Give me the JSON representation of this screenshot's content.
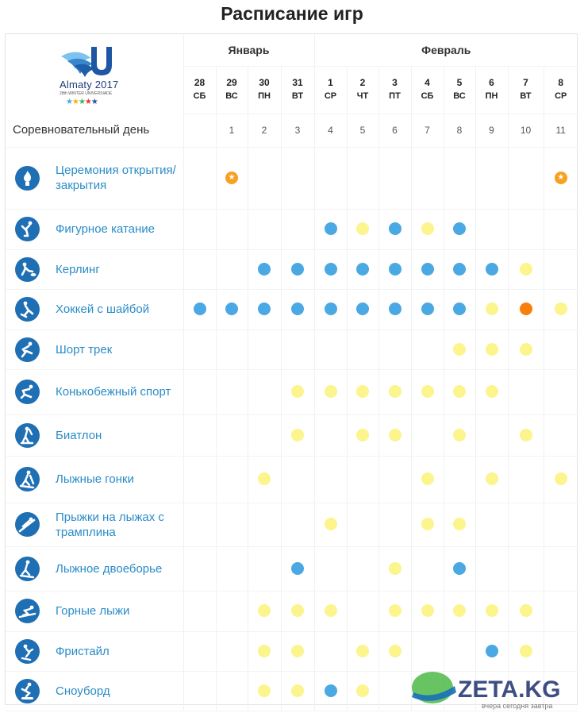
{
  "title": "Расписание игр",
  "logo": {
    "brand": "Almaty 2017",
    "subtitle": "28th WINTER UNIVERSIADE"
  },
  "months": [
    {
      "label": "Январь",
      "span": 4
    },
    {
      "label": "Февраль",
      "span": 8
    }
  ],
  "days": [
    {
      "date": "28",
      "dow": "СБ",
      "comp": ""
    },
    {
      "date": "29",
      "dow": "ВС",
      "comp": "1"
    },
    {
      "date": "30",
      "dow": "ПН",
      "comp": "2"
    },
    {
      "date": "31",
      "dow": "ВТ",
      "comp": "3"
    },
    {
      "date": "1",
      "dow": "СР",
      "comp": "4"
    },
    {
      "date": "2",
      "dow": "ЧТ",
      "comp": "5"
    },
    {
      "date": "3",
      "dow": "ПТ",
      "comp": "6"
    },
    {
      "date": "4",
      "dow": "СБ",
      "comp": "7"
    },
    {
      "date": "5",
      "dow": "ВС",
      "comp": "8"
    },
    {
      "date": "6",
      "dow": "ПН",
      "comp": "9"
    },
    {
      "date": "7",
      "dow": "ВТ",
      "comp": "10"
    },
    {
      "date": "8",
      "dow": "СР",
      "comp": "11"
    }
  ],
  "competition_day_label": "Соревновательный день",
  "colors": {
    "blue": "#4aa8e3",
    "yellow": "#fcf48c",
    "orange": "#f7800c",
    "star": "#f8a020",
    "icon": "#1f6fb4",
    "link": "#2a8cc8"
  },
  "sports": [
    {
      "name": "Церемония открытия/закрытия",
      "icon": "flame-icon",
      "height": 78,
      "cells": [
        "",
        "s",
        "",
        "",
        "",
        "",
        "",
        "",
        "",
        "",
        "",
        "s"
      ]
    },
    {
      "name": "Фигурное катание",
      "icon": "figure-skating-icon",
      "height": 51,
      "cells": [
        "",
        "",
        "",
        "",
        "b",
        "y",
        "b",
        "y",
        "b",
        "",
        "",
        ""
      ]
    },
    {
      "name": "Керлинг",
      "icon": "curling-icon",
      "height": 50,
      "cells": [
        "",
        "",
        "b",
        "b",
        "b",
        "b",
        "b",
        "b",
        "b",
        "b",
        "y",
        ""
      ]
    },
    {
      "name": "Хоккей с шайбой",
      "icon": "ice-hockey-icon",
      "height": 51,
      "cells": [
        "b",
        "b",
        "b",
        "b",
        "b",
        "b",
        "b",
        "b",
        "b",
        "y",
        "o",
        "y"
      ]
    },
    {
      "name": "Шорт трек",
      "icon": "short-track-icon",
      "height": 50,
      "cells": [
        "",
        "",
        "",
        "",
        "",
        "",
        "",
        "",
        "y",
        "y",
        "y",
        ""
      ]
    },
    {
      "name": "Конькобежный спорт",
      "icon": "speed-skating-icon",
      "height": 57,
      "cells": [
        "",
        "",
        "",
        "y",
        "y",
        "y",
        "y",
        "y",
        "y",
        "y",
        "",
        ""
      ]
    },
    {
      "name": "Биатлон",
      "icon": "biathlon-icon",
      "height": 52,
      "cells": [
        "",
        "",
        "",
        "y",
        "",
        "y",
        "y",
        "",
        "y",
        "",
        "y",
        ""
      ]
    },
    {
      "name": "Лыжные гонки",
      "icon": "cross-country-icon",
      "height": 59,
      "cells": [
        "",
        "",
        "y",
        "",
        "",
        "",
        "",
        "y",
        "",
        "y",
        "",
        "y"
      ]
    },
    {
      "name": "Прыжки на лыжах с трамплина",
      "icon": "ski-jumping-icon",
      "height": 55,
      "cells": [
        "",
        "",
        "",
        "",
        "y",
        "",
        "",
        "y",
        "y",
        "",
        "",
        ""
      ]
    },
    {
      "name": "Лыжное двоеборье",
      "icon": "nordic-combined-icon",
      "height": 56,
      "cells": [
        "",
        "",
        "",
        "b",
        "",
        "",
        "y",
        "",
        "b",
        "",
        "",
        ""
      ]
    },
    {
      "name": "Горные лыжи",
      "icon": "alpine-skiing-icon",
      "height": 51,
      "cells": [
        "",
        "",
        "y",
        "y",
        "y",
        "",
        "y",
        "y",
        "y",
        "y",
        "y",
        ""
      ]
    },
    {
      "name": "Фристайл",
      "icon": "freestyle-icon",
      "height": 50,
      "cells": [
        "",
        "",
        "y",
        "y",
        "",
        "y",
        "y",
        "",
        "",
        "b",
        "y",
        ""
      ]
    },
    {
      "name": "Сноуборд",
      "icon": "snowboard-icon",
      "height": 50,
      "cells": [
        "",
        "",
        "y",
        "y",
        "b",
        "y",
        "",
        "",
        "",
        "",
        "",
        ""
      ]
    }
  ],
  "watermark": {
    "logo": "ZETA.KG",
    "tagline": "вчера сегодня завтра"
  }
}
